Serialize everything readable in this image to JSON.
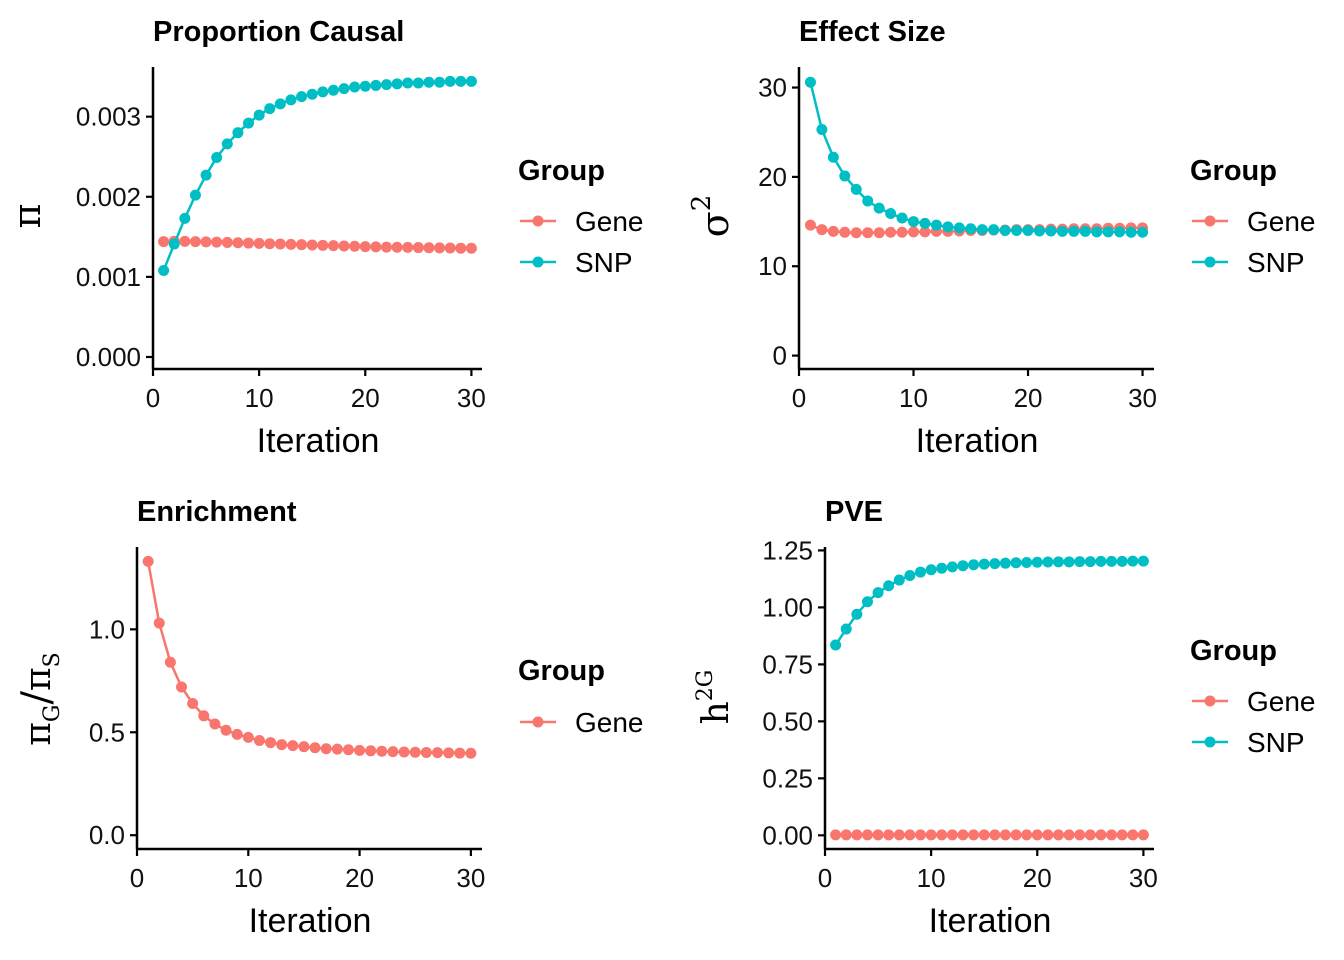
{
  "colors": {
    "Gene": "#F8766D",
    "SNP": "#00BFC4"
  },
  "legend": {
    "title": "Group"
  },
  "chart_data": [
    {
      "id": "proportion",
      "type": "line",
      "title": "Proportion Causal",
      "xlabel": "Iteration",
      "ylabel": "π",
      "xlim": [
        0,
        31
      ],
      "ylim": [
        -0.00015,
        0.00362
      ],
      "xticks": [
        0,
        10,
        20,
        30
      ],
      "yticks": [
        0.0,
        0.001,
        0.002,
        0.003
      ],
      "ytick_labels": [
        "0.000",
        "0.001",
        "0.002",
        "0.003"
      ],
      "legend": [
        "Gene",
        "SNP"
      ],
      "series": [
        {
          "name": "Gene",
          "values": [
            0.00144,
            0.001445,
            0.001443,
            0.00144,
            0.001437,
            0.001434,
            0.00143,
            0.001426,
            0.001422,
            0.001418,
            0.001414,
            0.00141,
            0.001406,
            0.001402,
            0.001398,
            0.001394,
            0.00139,
            0.001386,
            0.001382,
            0.001378,
            0.001375,
            0.001372,
            0.00137,
            0.001368,
            0.001366,
            0.001364,
            0.001362,
            0.00136,
            0.001358,
            0.001357
          ]
        },
        {
          "name": "SNP",
          "values": [
            0.00108,
            0.00141,
            0.00173,
            0.00202,
            0.00227,
            0.00249,
            0.00266,
            0.0028,
            0.00292,
            0.00302,
            0.0031,
            0.00316,
            0.00321,
            0.00325,
            0.00328,
            0.00331,
            0.00333,
            0.00335,
            0.00337,
            0.00338,
            0.00339,
            0.0034,
            0.00341,
            0.00342,
            0.00342,
            0.00343,
            0.00343,
            0.00344,
            0.00344,
            0.00344
          ]
        }
      ]
    },
    {
      "id": "effect",
      "type": "line",
      "title": "Effect Size",
      "xlabel": "Iteration",
      "ylabel": "σ",
      "ylabel_sup": "2",
      "xlim": [
        0,
        31
      ],
      "ylim": [
        -1.5,
        32.3
      ],
      "xticks": [
        0,
        10,
        20,
        30
      ],
      "yticks": [
        0,
        10,
        20,
        30
      ],
      "ytick_labels": [
        "0",
        "10",
        "20",
        "30"
      ],
      "legend": [
        "Gene",
        "SNP"
      ],
      "series": [
        {
          "name": "Gene",
          "values": [
            14.6,
            14.1,
            13.9,
            13.8,
            13.75,
            13.75,
            13.75,
            13.8,
            13.8,
            13.85,
            13.85,
            13.9,
            13.9,
            13.95,
            14.0,
            14.0,
            14.05,
            14.05,
            14.1,
            14.1,
            14.1,
            14.15,
            14.15,
            14.2,
            14.2,
            14.2,
            14.25,
            14.25,
            14.3,
            14.3
          ]
        },
        {
          "name": "SNP",
          "values": [
            30.6,
            25.3,
            22.2,
            20.1,
            18.6,
            17.3,
            16.5,
            15.9,
            15.4,
            15.0,
            14.8,
            14.6,
            14.4,
            14.3,
            14.2,
            14.1,
            14.1,
            14.0,
            14.0,
            14.0,
            13.95,
            13.95,
            13.9,
            13.9,
            13.9,
            13.85,
            13.85,
            13.85,
            13.8,
            13.8
          ]
        }
      ]
    },
    {
      "id": "enrichment",
      "type": "line",
      "title": "Enrichment",
      "xlabel": "Iteration",
      "ylabel": "π",
      "ylabel_sub1": "G",
      "ylabel_slash": "/",
      "ylabel_sym2": "π",
      "ylabel_sub2": "S",
      "xlim": [
        0,
        31
      ],
      "ylim": [
        -0.067,
        1.4
      ],
      "xticks": [
        0,
        10,
        20,
        30
      ],
      "yticks": [
        0.0,
        0.5,
        1.0
      ],
      "ytick_labels": [
        "0.0",
        "0.5",
        "1.0"
      ],
      "legend": [
        "Gene"
      ],
      "series": [
        {
          "name": "Gene",
          "values": [
            1.33,
            1.03,
            0.84,
            0.72,
            0.64,
            0.58,
            0.54,
            0.51,
            0.49,
            0.475,
            0.46,
            0.45,
            0.44,
            0.435,
            0.43,
            0.425,
            0.42,
            0.418,
            0.415,
            0.412,
            0.41,
            0.408,
            0.406,
            0.404,
            0.403,
            0.402,
            0.401,
            0.4,
            0.399,
            0.398
          ]
        }
      ]
    },
    {
      "id": "pve",
      "type": "line",
      "title": "PVE",
      "xlabel": "Iteration",
      "ylabel": "h",
      "ylabel_sup": "2G",
      "xlim": [
        0,
        31
      ],
      "ylim": [
        -0.06,
        1.265
      ],
      "xticks": [
        0,
        10,
        20,
        30
      ],
      "yticks": [
        0.0,
        0.25,
        0.5,
        0.75,
        1.0,
        1.25
      ],
      "ytick_labels": [
        "0.00",
        "0.25",
        "0.50",
        "0.75",
        "1.00",
        "1.25"
      ],
      "legend": [
        "Gene",
        "SNP"
      ],
      "series": [
        {
          "name": "Gene",
          "values": [
            0.002,
            0.002,
            0.002,
            0.002,
            0.002,
            0.002,
            0.002,
            0.002,
            0.002,
            0.002,
            0.002,
            0.002,
            0.002,
            0.002,
            0.002,
            0.002,
            0.002,
            0.002,
            0.002,
            0.002,
            0.002,
            0.002,
            0.002,
            0.002,
            0.002,
            0.002,
            0.002,
            0.002,
            0.002,
            0.002
          ]
        },
        {
          "name": "SNP",
          "values": [
            0.835,
            0.905,
            0.97,
            1.025,
            1.065,
            1.095,
            1.12,
            1.14,
            1.155,
            1.165,
            1.172,
            1.178,
            1.183,
            1.187,
            1.19,
            1.192,
            1.194,
            1.196,
            1.197,
            1.198,
            1.199,
            1.2,
            1.2,
            1.201,
            1.201,
            1.202,
            1.202,
            1.202,
            1.203,
            1.203
          ]
        }
      ]
    }
  ]
}
